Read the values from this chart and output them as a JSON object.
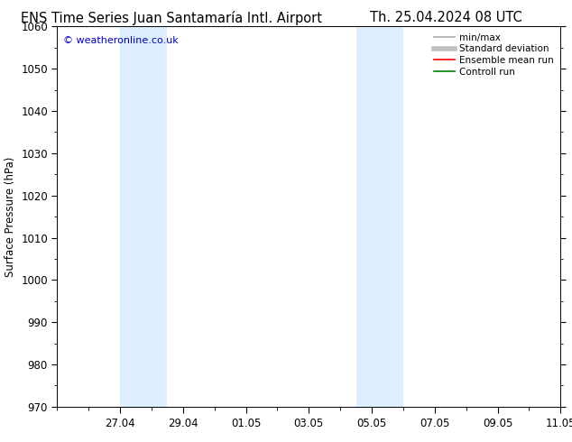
{
  "title_left": "ENS Time Series Juan Santamaría Intl. Airport",
  "title_right": "Th. 25.04.2024 08 UTC",
  "ylabel": "Surface Pressure (hPa)",
  "ylim": [
    970,
    1060
  ],
  "yticks": [
    970,
    980,
    990,
    1000,
    1010,
    1020,
    1030,
    1040,
    1050,
    1060
  ],
  "xlim": [
    0,
    16
  ],
  "xtick_labels": [
    "27.04",
    "29.04",
    "01.05",
    "03.05",
    "05.05",
    "07.05",
    "09.05",
    "11.05"
  ],
  "xtick_positions": [
    2,
    4,
    6,
    8,
    10,
    12,
    14,
    16
  ],
  "shaded_bands": [
    {
      "x_start": 2.0,
      "x_end": 3.5
    },
    {
      "x_start": 9.5,
      "x_end": 11.0
    }
  ],
  "watermark": "© weatheronline.co.uk",
  "watermark_color": "#0000cc",
  "background_color": "#ffffff",
  "plot_bg_color": "#ffffff",
  "band_color": "#ddeeff",
  "legend_items": [
    {
      "label": "min/max",
      "color": "#aaaaaa",
      "linewidth": 1.2
    },
    {
      "label": "Standard deviation",
      "color": "#c0c0c0",
      "linewidth": 4
    },
    {
      "label": "Ensemble mean run",
      "color": "#ff0000",
      "linewidth": 1.2
    },
    {
      "label": "Controll run",
      "color": "#008000",
      "linewidth": 1.2
    }
  ],
  "title_fontsize": 10.5,
  "tick_fontsize": 8.5,
  "label_fontsize": 8.5,
  "legend_fontsize": 7.5
}
